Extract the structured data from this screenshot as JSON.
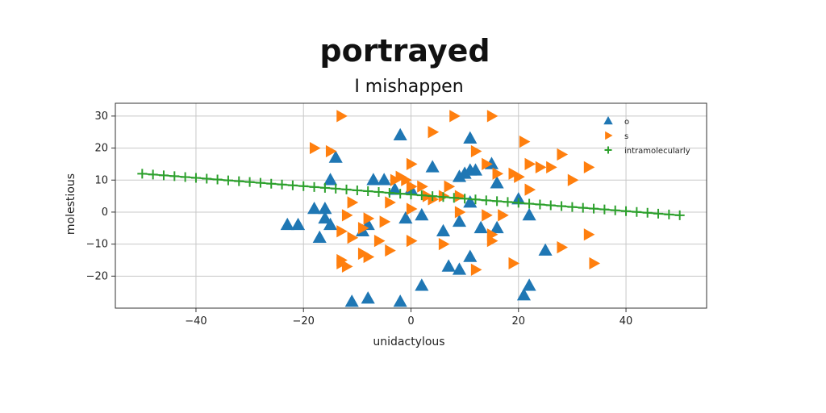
{
  "chart_data": {
    "type": "scatter",
    "suptitle": "portrayed",
    "title": "I mishappen",
    "xlabel": "unidactylous",
    "ylabel": "molestious",
    "xlim": [
      -55,
      55
    ],
    "ylim": [
      -30,
      34
    ],
    "xticks": [
      -40,
      -20,
      0,
      20,
      40
    ],
    "yticks": [
      -20,
      -10,
      0,
      10,
      20,
      30
    ],
    "grid": true,
    "legend_position": "top-right",
    "colors": {
      "o": "#1f77b4",
      "s": "#ff7f0e",
      "line": "#2ca02c"
    },
    "series": [
      {
        "name": "o",
        "marker": "triangle-up",
        "points": [
          [
            -2,
            24
          ],
          [
            11,
            23
          ],
          [
            -23,
            -4
          ],
          [
            -21,
            -4
          ],
          [
            -14,
            17
          ],
          [
            -15,
            10
          ],
          [
            -18,
            1
          ],
          [
            -16,
            1
          ],
          [
            -16,
            -2
          ],
          [
            -15,
            -4
          ],
          [
            -17,
            -8
          ],
          [
            -7,
            10
          ],
          [
            -5,
            10
          ],
          [
            -8,
            -4
          ],
          [
            -9,
            -6
          ],
          [
            -3,
            7
          ],
          [
            0,
            7
          ],
          [
            -1,
            -2
          ],
          [
            2,
            -1
          ],
          [
            4,
            14
          ],
          [
            9,
            11
          ],
          [
            11,
            13
          ],
          [
            12,
            13
          ],
          [
            10,
            12
          ],
          [
            15,
            15
          ],
          [
            16,
            9
          ],
          [
            11,
            3
          ],
          [
            13,
            -5
          ],
          [
            9,
            -3
          ],
          [
            6,
            -6
          ],
          [
            7,
            -17
          ],
          [
            9,
            -18
          ],
          [
            11,
            -14
          ],
          [
            2,
            -23
          ],
          [
            -11,
            -28
          ],
          [
            -8,
            -27
          ],
          [
            -2,
            -28
          ],
          [
            21,
            -26
          ],
          [
            22,
            -23
          ],
          [
            25,
            -12
          ],
          [
            20,
            4
          ],
          [
            22,
            -1
          ],
          [
            16,
            -5
          ]
        ]
      },
      {
        "name": "s",
        "marker": "triangle-right",
        "points": [
          [
            -13,
            30
          ],
          [
            8,
            30
          ],
          [
            15,
            30
          ],
          [
            4,
            25
          ],
          [
            -18,
            20
          ],
          [
            12,
            19
          ],
          [
            -15,
            19
          ],
          [
            21,
            22
          ],
          [
            28,
            18
          ],
          [
            22,
            15
          ],
          [
            24,
            14
          ],
          [
            26,
            14
          ],
          [
            33,
            14
          ],
          [
            19,
            12
          ],
          [
            16,
            12
          ],
          [
            14,
            15
          ],
          [
            0,
            15
          ],
          [
            -2,
            11
          ],
          [
            -3,
            10
          ],
          [
            -1,
            10
          ],
          [
            0,
            8
          ],
          [
            2,
            8
          ],
          [
            7,
            8
          ],
          [
            3,
            5
          ],
          [
            9,
            5
          ],
          [
            4,
            4
          ],
          [
            20,
            11
          ],
          [
            22,
            7
          ],
          [
            30,
            10
          ],
          [
            6,
            5
          ],
          [
            9,
            0
          ],
          [
            14,
            -1
          ],
          [
            17,
            -1
          ],
          [
            -5,
            -3
          ],
          [
            -12,
            -1
          ],
          [
            -8,
            -2
          ],
          [
            -9,
            -5
          ],
          [
            -6,
            -9
          ],
          [
            -11,
            -8
          ],
          [
            -13,
            -15
          ],
          [
            -13,
            -16
          ],
          [
            -12,
            -17
          ],
          [
            -9,
            -13
          ],
          [
            -4,
            -12
          ],
          [
            -8,
            -14
          ],
          [
            6,
            -10
          ],
          [
            0,
            -9
          ],
          [
            -13,
            -6
          ],
          [
            -4,
            3
          ],
          [
            -11,
            3
          ],
          [
            0,
            1
          ],
          [
            12,
            -18
          ],
          [
            15,
            -7
          ],
          [
            15,
            -9
          ],
          [
            19,
            -16
          ],
          [
            28,
            -11
          ],
          [
            33,
            -7
          ],
          [
            34,
            -16
          ]
        ]
      },
      {
        "name": "intramolecularly",
        "marker": "plus-line",
        "line": {
          "x_start": -50,
          "x_end": 50,
          "y_start": 12,
          "y_end": -1,
          "count": 51
        }
      }
    ]
  }
}
